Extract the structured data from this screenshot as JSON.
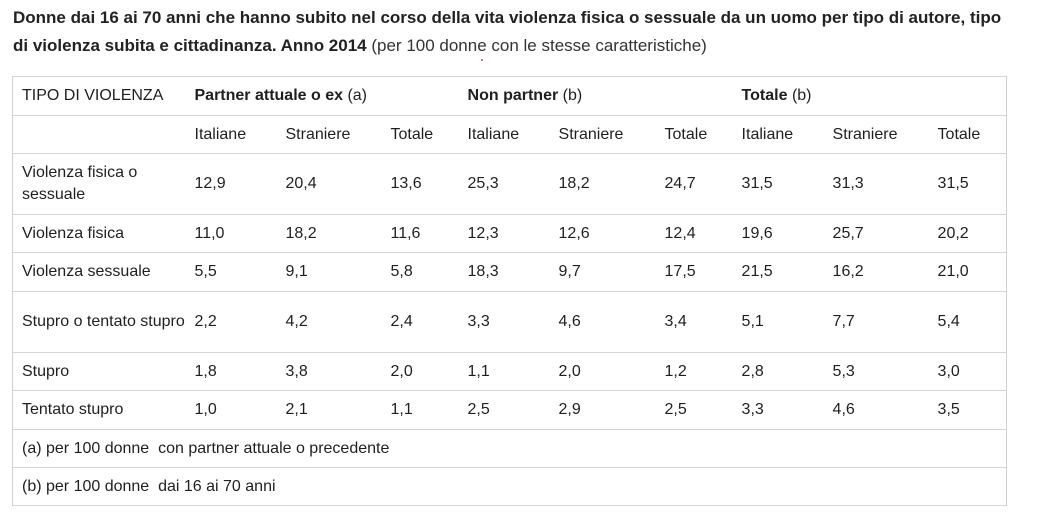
{
  "title": {
    "bold": "Donne dai 16 ai 70 anni che hanno subito nel corso della vita violenza fisica o sessuale da un uomo per tipo di autore, tipo di violenza subita e cittadinanza. Anno 2014",
    "light": "(per 100 donne con le stesse caratteristiche)"
  },
  "table": {
    "corner": "TIPO DI VIOLENZA",
    "groups": [
      {
        "label": "Partner attuale o ex",
        "suffix": "(a)"
      },
      {
        "label": "Non partner",
        "suffix": "(b)"
      },
      {
        "label": "Totale",
        "suffix": "(b)"
      }
    ],
    "subcols": [
      "Italiane",
      "Straniere",
      "Totale",
      "Italiane",
      "Straniere",
      "Totale",
      "Italiane",
      "Straniere",
      "Totale"
    ],
    "rows": [
      {
        "label": "Violenza fisica o sessuale",
        "values": [
          "12,9",
          "20,4",
          "13,6",
          "25,3",
          "18,2",
          "24,7",
          "31,5",
          "31,3",
          "31,5"
        ]
      },
      {
        "label": "Violenza fisica",
        "values": [
          "11,0",
          "18,2",
          "11,6",
          "12,3",
          "12,6",
          "12,4",
          "19,6",
          "25,7",
          "20,2"
        ]
      },
      {
        "label": "Violenza sessuale",
        "values": [
          "5,5",
          "9,1",
          "5,8",
          "18,3",
          "9,7",
          "17,5",
          "21,5",
          "16,2",
          "21,0"
        ]
      },
      {
        "label": "Stupro o tentato stupro",
        "values": [
          "2,2",
          "4,2",
          "2,4",
          "3,3",
          "4,6",
          "3,4",
          "5,1",
          "7,7",
          "5,4"
        ]
      },
      {
        "label": "Stupro",
        "values": [
          "1,8",
          "3,8",
          "2,0",
          "1,1",
          "2,0",
          "1,2",
          "2,8",
          "5,3",
          "3,0"
        ]
      },
      {
        "label": "Tentato stupro",
        "values": [
          "1,0",
          "2,1",
          "1,1",
          "2,5",
          "2,9",
          "2,5",
          "3,3",
          "4,6",
          "3,5"
        ]
      }
    ],
    "notes": [
      "(a) per 100 donne  con partner attuale o precedente",
      "(b) per 100 donne  dai 16 ai 70 anni"
    ]
  }
}
